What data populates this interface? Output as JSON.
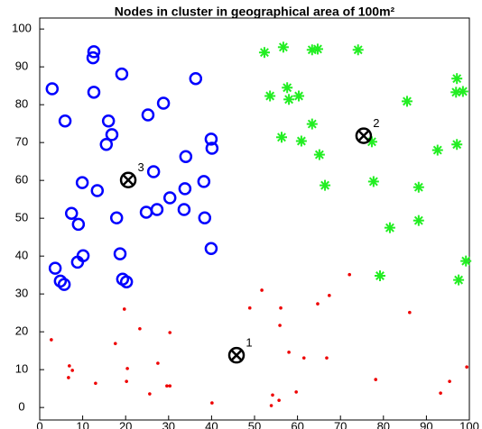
{
  "chart_data": {
    "type": "scatter",
    "title": "Nodes in cluster in geographical area of 100m²",
    "xlim": [
      0,
      100
    ],
    "ylim": [
      -3.3,
      102.9
    ],
    "xticks": [
      0,
      10,
      20,
      30,
      40,
      50,
      60,
      70,
      80,
      90,
      100
    ],
    "yticks": [
      0,
      10,
      20,
      30,
      40,
      50,
      60,
      70,
      80,
      90,
      100
    ],
    "series": [
      {
        "marker": "circle",
        "color": "#0000ff",
        "x": [
          2.9,
          12.6,
          12.4,
          19.1,
          12.6,
          5.9,
          16.0,
          15.5,
          25.2,
          28.8,
          36.3,
          16.8,
          39.9,
          40.1,
          34.0,
          26.5,
          9.9,
          13.4,
          38.2,
          30.3,
          33.8,
          27.3,
          24.8,
          33.6,
          7.4,
          9.0,
          17.9,
          38.4,
          39.9,
          18.7,
          10.1,
          8.8,
          3.6,
          4.8,
          5.7,
          19.3,
          20.2
        ],
        "values": [
          84.2,
          94.0,
          92.4,
          88.1,
          83.3,
          75.7,
          75.7,
          69.5,
          77.3,
          80.4,
          86.9,
          72.1,
          70.9,
          68.5,
          66.3,
          62.3,
          59.4,
          57.3,
          59.7,
          55.4,
          57.8,
          52.3,
          51.6,
          52.3,
          51.3,
          48.4,
          50.1,
          50.1,
          42.0,
          40.6,
          40.1,
          38.4,
          36.8,
          33.4,
          32.5,
          33.9,
          33.2
        ]
      },
      {
        "marker": "star",
        "color": "#22ee22",
        "x": [
          56.7,
          52.3,
          63.4,
          64.7,
          74.1,
          53.6,
          57.6,
          58.0,
          60.3,
          85.5,
          97.1,
          96.9,
          98.5,
          63.4,
          56.3,
          60.9,
          65.1,
          77.3,
          92.6,
          97.1,
          66.4,
          77.7,
          88.2,
          81.5,
          88.2,
          99.2,
          79.2,
          97.5
        ],
        "values": [
          95.2,
          93.8,
          94.5,
          94.7,
          94.5,
          82.3,
          84.5,
          81.4,
          82.3,
          80.9,
          86.9,
          83.3,
          83.5,
          74.9,
          71.4,
          70.4,
          66.8,
          70.2,
          68.0,
          69.5,
          58.7,
          59.7,
          58.2,
          47.5,
          49.4,
          38.7,
          34.8,
          33.7
        ]
      },
      {
        "marker": "dot",
        "color": "#ee0000",
        "x": [
          51.7,
          67.4,
          72.1,
          64.7,
          56.1,
          48.9,
          55.9,
          86.1,
          19.7,
          2.7,
          17.6,
          23.3,
          30.3,
          58.0,
          61.5,
          66.8,
          27.5,
          6.9,
          7.6,
          20.4,
          6.7,
          13.0,
          20.2,
          29.6,
          30.3,
          25.6,
          40.1,
          54.2,
          55.7,
          59.7,
          53.9,
          78.2,
          99.4,
          95.4,
          93.3
        ],
        "values": [
          31.0,
          29.6,
          35.1,
          27.4,
          26.3,
          26.3,
          21.7,
          25.1,
          26.0,
          17.9,
          16.9,
          20.8,
          19.8,
          14.6,
          13.1,
          13.1,
          11.7,
          11.0,
          9.8,
          10.3,
          7.9,
          6.4,
          6.9,
          5.7,
          5.7,
          3.6,
          1.2,
          3.3,
          1.9,
          4.1,
          0.5,
          7.4,
          10.7,
          6.9,
          3.8
        ]
      },
      {
        "marker": "centroid",
        "color": "#000000",
        "x": [
          45.8,
          75.4,
          20.6
        ],
        "values": [
          13.8,
          71.8,
          60.1
        ],
        "labels": [
          "1",
          "2",
          "3"
        ]
      }
    ]
  }
}
